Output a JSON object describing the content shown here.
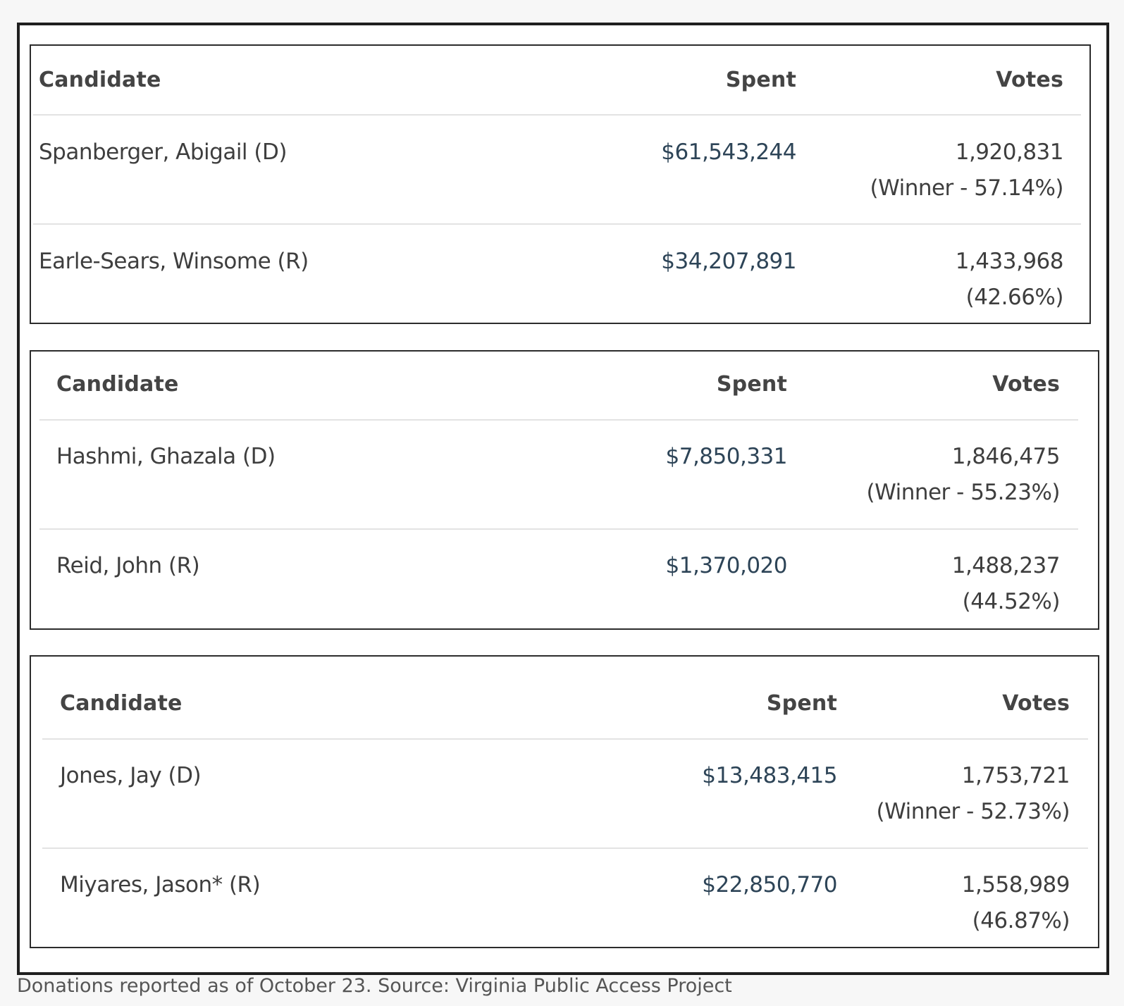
{
  "tables": [
    {
      "headers": {
        "candidate": "Candidate",
        "spent": "Spent",
        "votes": "Votes"
      },
      "rows": [
        {
          "candidate": "Spanberger, Abigail (D)",
          "spent": "$61,543,244",
          "votes": "1,920,831",
          "share": "(Winner - 57.14%)"
        },
        {
          "candidate": "Earle-Sears, Winsome (R)",
          "spent": "$34,207,891",
          "votes": "1,433,968",
          "share": "(42.66%)"
        }
      ]
    },
    {
      "headers": {
        "candidate": "Candidate",
        "spent": "Spent",
        "votes": "Votes"
      },
      "rows": [
        {
          "candidate": "Hashmi, Ghazala (D)",
          "spent": "$7,850,331",
          "votes": "1,846,475",
          "share": "(Winner - 55.23%)"
        },
        {
          "candidate": "Reid, John (R)",
          "spent": "$1,370,020",
          "votes": "1,488,237",
          "share": "(44.52%)"
        }
      ]
    },
    {
      "headers": {
        "candidate": "Candidate",
        "spent": "Spent",
        "votes": "Votes"
      },
      "rows": [
        {
          "candidate": "Jones, Jay (D)",
          "spent": "$13,483,415",
          "votes": "1,753,721",
          "share": "(Winner - 52.73%)"
        },
        {
          "candidate": "Miyares, Jason* (R)",
          "spent": "$22,850,770",
          "votes": "1,558,989",
          "share": "(46.87%)"
        }
      ]
    }
  ],
  "caption": "Donations reported as of October 23. Source: Virginia Public Access Project"
}
